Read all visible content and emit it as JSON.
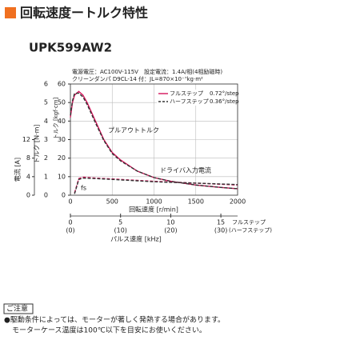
{
  "header": {
    "title": "回転速度ートルク特性",
    "model": "UPK599AW2",
    "conditions": [
      "電源電圧：AC100V-115V　設定電流：1.4A/相(4相励磁時)",
      "クリーンダンパ D9CL-14 付：JL=870×10⁻⁷kg·m²"
    ]
  },
  "chart_data": {
    "type": "line",
    "xlabel": "回転速度 [r/min]",
    "xlim": [
      0,
      2000
    ],
    "xticks": [
      0,
      500,
      1000,
      1500,
      2000
    ],
    "x2label": "パルス速度 [kHz]",
    "x2lim": [
      0,
      16.67
    ],
    "x2ticks": [
      0,
      5,
      10,
      15
    ],
    "x2name": "フルステップ",
    "x3lim": [
      0,
      33.33
    ],
    "x3ticks": [
      {
        "value": 0,
        "label": "(0)"
      },
      {
        "value": 10,
        "label": "(10)"
      },
      {
        "value": 20,
        "label": "(20)"
      },
      {
        "value": 30,
        "label": "(30)"
      }
    ],
    "x3name": "(ハーフステップ)",
    "ylabel": "トルク [N·m]",
    "ylim": [
      0,
      6
    ],
    "yticks": [
      0,
      1,
      2,
      3,
      4,
      5,
      6
    ],
    "y2label": "トルク [kgf·cm]",
    "y2lim": [
      0,
      60
    ],
    "y2ticks": [
      0,
      10,
      20,
      30,
      40,
      50,
      60
    ],
    "y3label": "電流 [A]",
    "y3lim": [
      0,
      24
    ],
    "y3ticks": [
      0,
      4,
      8,
      12
    ],
    "grid": true,
    "legend": "upper right",
    "annotations": [
      "プルアウトトルク",
      "ドライバ入力電流",
      "fs"
    ],
    "series": [
      {
        "name": "フルステップ",
        "step_angle": "0.72°/step",
        "color": "#d4145a",
        "dash": false,
        "axis": "y",
        "x": [
          0,
          25,
          50,
          100,
          150,
          200,
          300,
          400,
          500,
          600,
          800,
          1000,
          1200,
          1500,
          1800,
          2000
        ],
        "values": [
          4.2,
          5.0,
          5.4,
          5.6,
          5.4,
          5.0,
          4.0,
          3.0,
          2.3,
          1.9,
          1.3,
          0.95,
          0.75,
          0.55,
          0.42,
          0.35
        ]
      },
      {
        "name": "ハーフステップ",
        "step_angle": "0.36°/step",
        "color": "#333333",
        "dash": true,
        "axis": "y",
        "x": [
          0,
          25,
          50,
          100,
          150,
          200,
          300,
          400,
          500,
          600,
          800,
          1000,
          1200,
          1500,
          1800,
          2000
        ],
        "values": [
          4.3,
          5.1,
          5.5,
          5.5,
          5.3,
          4.9,
          3.9,
          2.95,
          2.25,
          1.85,
          1.3,
          0.95,
          0.75,
          0.55,
          0.42,
          0.35
        ]
      },
      {
        "color": "#d4145a",
        "dash": true,
        "axis": "y3",
        "x": [
          50,
          100,
          150,
          300,
          500,
          800,
          1000,
          1500,
          2000
        ],
        "values": [
          0.5,
          3.6,
          3.9,
          3.7,
          3.5,
          3.2,
          3.0,
          2.6,
          2.2
        ]
      },
      {
        "color": "#333333",
        "dash": true,
        "axis": "y3",
        "x": [
          50,
          100,
          150,
          300,
          500,
          800,
          1000,
          1500,
          2000
        ],
        "values": [
          0.3,
          3.4,
          3.7,
          3.6,
          3.4,
          3.1,
          2.9,
          2.6,
          2.3
        ]
      }
    ]
  },
  "note": {
    "title": "ご注意",
    "lines": [
      "●駆動条件によっては、モーターが著しく発熱する場合があります。",
      "モーターケース温度は100℃以下を目安にお使いください。"
    ]
  }
}
